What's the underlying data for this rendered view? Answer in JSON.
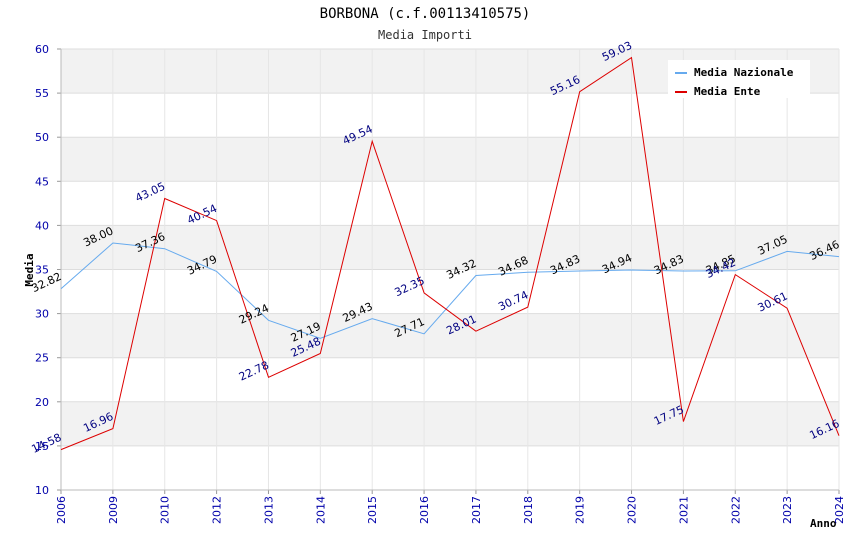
{
  "chart_data": {
    "type": "line",
    "title": "BORBONA (c.f.00113410575)",
    "subtitle": "Media Importi",
    "xlabel": "Anno",
    "ylabel": "Media",
    "ylim": [
      10,
      60
    ],
    "y_ticks": [
      "10",
      "15",
      "20",
      "25",
      "30",
      "35",
      "40",
      "45",
      "50",
      "55",
      "60"
    ],
    "categories": [
      "2006",
      "2009",
      "2010",
      "2012",
      "2013",
      "2014",
      "2015",
      "2016",
      "2017",
      "2018",
      "2019",
      "2020",
      "2021",
      "2022",
      "2023",
      "2024"
    ],
    "grid": true,
    "legend_position": "top-right",
    "series": [
      {
        "name": "Media Nazionale",
        "color": "#66aaee",
        "label_color": "#000000",
        "values": [
          32.82,
          38.0,
          37.36,
          34.79,
          29.24,
          27.19,
          29.43,
          27.71,
          34.32,
          34.68,
          34.83,
          34.94,
          34.83,
          34.85,
          37.05,
          36.46
        ],
        "labels": [
          "32.82",
          "38.00",
          "37.36",
          "34.79",
          "29.24",
          "27.19",
          "29.43",
          "27.71",
          "34.32",
          "34.68",
          "34.83",
          "34.94",
          "34.83",
          "34.85",
          "37.05",
          "36.46"
        ]
      },
      {
        "name": "Media Ente",
        "color": "#dd0000",
        "label_color": "#000080",
        "values": [
          14.58,
          16.96,
          43.05,
          40.54,
          22.78,
          25.48,
          49.54,
          32.35,
          28.01,
          30.74,
          55.16,
          59.03,
          17.75,
          34.42,
          30.61,
          16.16
        ],
        "labels": [
          "14.58",
          "16.96",
          "43.05",
          "40.54",
          "22.78",
          "25.48",
          "49.54",
          "32.35",
          "28.01",
          "30.74",
          "55.16",
          "59.03",
          "17.75",
          "34.42",
          "30.61",
          "16.16"
        ]
      }
    ]
  }
}
